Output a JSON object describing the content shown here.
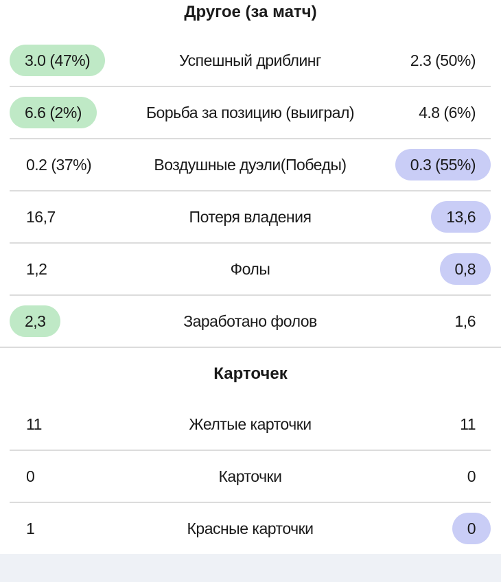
{
  "sections": {
    "other": {
      "title": "Другое (за матч)",
      "rows": [
        {
          "label": "Успешный дриблинг",
          "home": "3.0 (47%)",
          "away": "2.3 (50%)"
        },
        {
          "label": "Борьба за позицию (выиграл)",
          "home": "6.6 (2%)",
          "away": "4.8 (6%)"
        },
        {
          "label": "Воздушные дуэли(Победы)",
          "home": "0.2 (37%)",
          "away": "0.3 (55%)"
        },
        {
          "label": "Потеря владения",
          "home": "16,7",
          "away": "13,6"
        },
        {
          "label": "Фолы",
          "home": "1,2",
          "away": "0,8"
        },
        {
          "label": "Заработано фолов",
          "home": "2,3",
          "away": "1,6"
        }
      ]
    },
    "cards": {
      "title": "Карточек",
      "rows": [
        {
          "label": "Желтые карточки",
          "home": "11",
          "away": "11"
        },
        {
          "label": "Карточки",
          "home": "0",
          "away": "0"
        },
        {
          "label": "Красные карточки",
          "home": "1",
          "away": "0"
        }
      ]
    }
  },
  "colors": {
    "home_highlight": "#bfe9c6",
    "away_highlight": "#c9cdf6"
  }
}
